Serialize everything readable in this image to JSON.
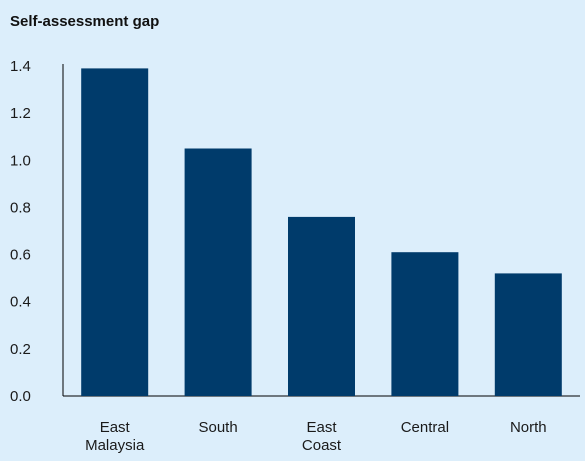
{
  "chart_data": {
    "type": "bar",
    "title": "Self-assessment gap",
    "xlabel": "",
    "ylabel": "",
    "categories": [
      "East Malaysia",
      "South",
      "East Coast",
      "Central",
      "North"
    ],
    "category_label_lines": [
      [
        "East",
        "Malaysia"
      ],
      [
        "South"
      ],
      [
        "East",
        "Coast"
      ],
      [
        "Central"
      ],
      [
        "North"
      ]
    ],
    "values": [
      1.39,
      1.05,
      0.76,
      0.61,
      0.52
    ],
    "ylim": [
      0,
      1.4
    ],
    "yticks": [
      0.0,
      0.2,
      0.4,
      0.6,
      0.8,
      1.0,
      1.2,
      1.4
    ],
    "ytick_labels": [
      "0.0",
      "0.2",
      "0.4",
      "0.6",
      "0.8",
      "1.0",
      "1.2",
      "1.4"
    ],
    "grid": false,
    "bar_color": "#003b6b",
    "axis_color": "#000000",
    "background_color": "#dceefb"
  }
}
